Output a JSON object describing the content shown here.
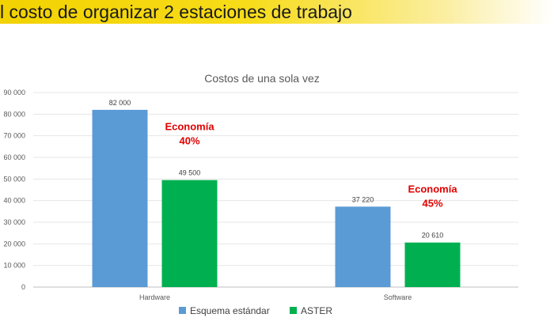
{
  "header": {
    "title": "l costo de organizar 2 estaciones de trabajo",
    "accent_color": "#f2d200"
  },
  "chart_data": {
    "type": "bar",
    "title": "Costos de una sola vez",
    "categories": [
      "Hardware",
      "Software"
    ],
    "series": [
      {
        "name": "Esquema estándar",
        "color": "#5b9bd5",
        "values": [
          82000,
          37220
        ],
        "labels": [
          "82 000",
          "37 220"
        ]
      },
      {
        "name": "ASTER",
        "color": "#00b050",
        "values": [
          49500,
          20610
        ],
        "labels": [
          "49 500",
          "20 610"
        ]
      }
    ],
    "ylim": [
      0,
      90000
    ],
    "yticks": [
      0,
      10000,
      20000,
      30000,
      40000,
      50000,
      60000,
      70000,
      80000,
      90000
    ],
    "ytick_labels": [
      "0",
      "10 000",
      "20 000",
      "30 000",
      "40 000",
      "50 000",
      "60 000",
      "70 000",
      "80 000",
      "90 000"
    ],
    "grid": true,
    "legend": "bottom",
    "annotations": [
      {
        "category": "Hardware",
        "lines": [
          "Economía",
          "40%"
        ],
        "color": "#e00000"
      },
      {
        "category": "Software",
        "lines": [
          "Economía",
          "45%"
        ],
        "color": "#e00000"
      }
    ]
  }
}
